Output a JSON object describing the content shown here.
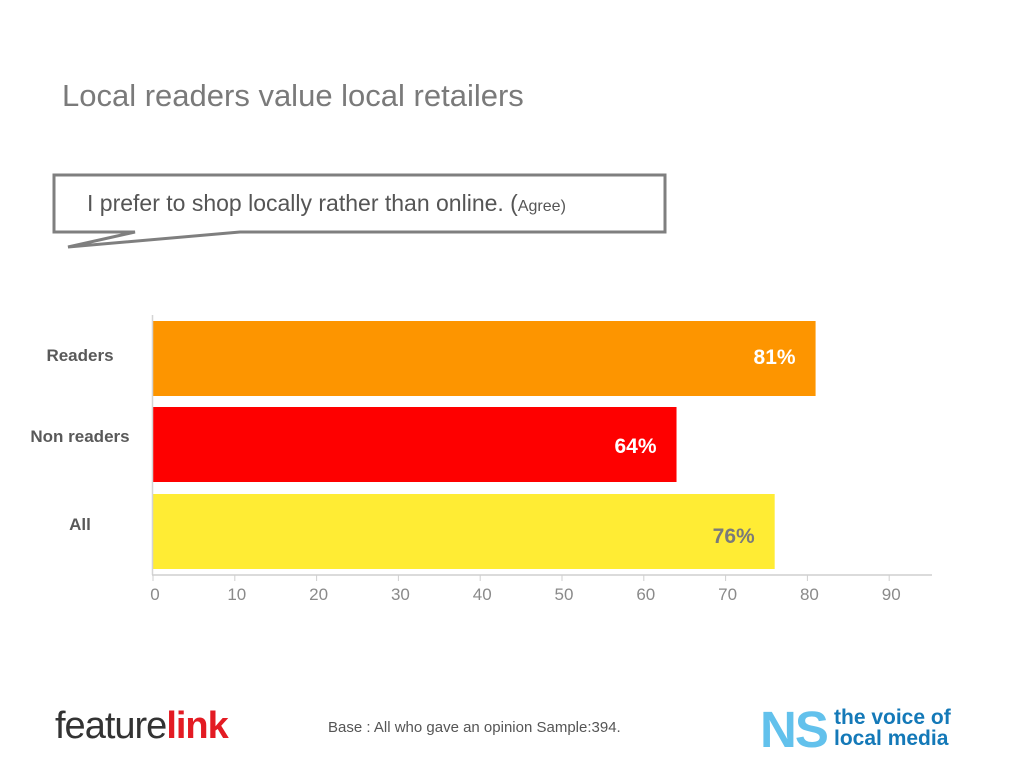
{
  "header": {
    "title": "Local readers value local retailers"
  },
  "callout": {
    "statement": "I prefer to shop locally rather than online. (",
    "agree": "Agree",
    "close": ")"
  },
  "chart_data": {
    "type": "bar",
    "orientation": "horizontal",
    "categories": [
      "Readers",
      "Non readers",
      "All"
    ],
    "values": [
      81,
      64,
      76
    ],
    "value_labels": [
      "81%",
      "64%",
      "76%"
    ],
    "colors": [
      "#fd9500",
      "#fe0000",
      "#ffec34"
    ],
    "value_label_colors": [
      "#ffffff",
      "#ffffff",
      "#7a7a7a"
    ],
    "xlim": [
      0,
      95
    ],
    "ticks": [
      0,
      10,
      20,
      30,
      40,
      50,
      60,
      70,
      80,
      90
    ],
    "grid": false
  },
  "footer": {
    "logo_left_a": "feature",
    "logo_left_b": "link",
    "note": "Base : All who gave an opinion  Sample:394.",
    "logo_right_mark": "NS",
    "logo_right_line1": "the voice of",
    "logo_right_line2": "local media"
  }
}
